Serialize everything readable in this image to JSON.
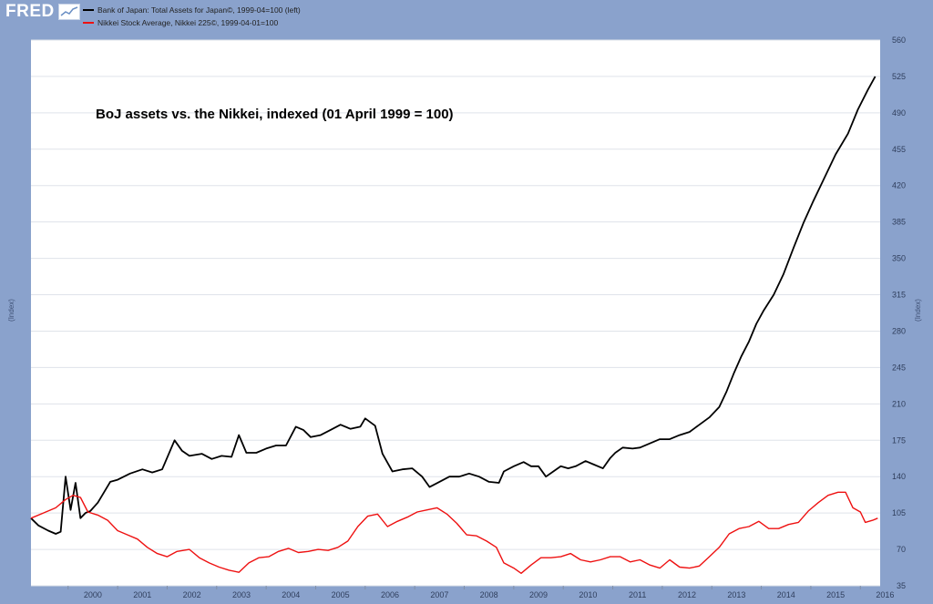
{
  "logo": "FRED",
  "legend": [
    {
      "label": "Bank of Japan: Total Assets for Japan©, 1999-04=100 (left)",
      "color": "#000000"
    },
    {
      "label": "Nikkei Stock Average, Nikkei 225©, 1999-04-01=100",
      "color": "#ee1111"
    }
  ],
  "axes": {
    "left_title": "(Index)",
    "right_title": "(Index)"
  },
  "chart_data": {
    "type": "line",
    "title": "BoJ assets vs. the Nikkei, indexed (01 April 1999 = 100)",
    "x_range": [
      1999.25,
      2016.4
    ],
    "y_range": [
      35,
      560
    ],
    "x_ticks": [
      "2000",
      "2001",
      "2002",
      "2003",
      "2004",
      "2005",
      "2006",
      "2007",
      "2008",
      "2009",
      "2010",
      "2011",
      "2012",
      "2013",
      "2014",
      "2015",
      "2016"
    ],
    "y_ticks": [
      35,
      70,
      105,
      140,
      175,
      210,
      245,
      280,
      315,
      350,
      385,
      420,
      455,
      490,
      525,
      560
    ],
    "grid": true,
    "series": [
      {
        "name": "Bank of Japan: Total Assets for Japan©, 1999-04=100 (left)",
        "color": "#000000",
        "points": [
          [
            1999.25,
            100
          ],
          [
            1999.4,
            93
          ],
          [
            1999.6,
            88
          ],
          [
            1999.75,
            85
          ],
          [
            1999.85,
            87
          ],
          [
            1999.95,
            140
          ],
          [
            2000.05,
            108
          ],
          [
            2000.15,
            134
          ],
          [
            2000.25,
            100
          ],
          [
            2000.35,
            105
          ],
          [
            2000.45,
            107
          ],
          [
            2000.6,
            115
          ],
          [
            2000.85,
            135
          ],
          [
            2001.0,
            137
          ],
          [
            2001.25,
            143
          ],
          [
            2001.5,
            147
          ],
          [
            2001.7,
            144
          ],
          [
            2001.9,
            147
          ],
          [
            2002.15,
            175
          ],
          [
            2002.3,
            165
          ],
          [
            2002.45,
            160
          ],
          [
            2002.7,
            162
          ],
          [
            2002.9,
            157
          ],
          [
            2003.1,
            160
          ],
          [
            2003.3,
            159
          ],
          [
            2003.45,
            180
          ],
          [
            2003.6,
            163
          ],
          [
            2003.8,
            163
          ],
          [
            2004.0,
            167
          ],
          [
            2004.2,
            170
          ],
          [
            2004.4,
            170
          ],
          [
            2004.6,
            188
          ],
          [
            2004.75,
            185
          ],
          [
            2004.9,
            178
          ],
          [
            2005.1,
            180
          ],
          [
            2005.3,
            185
          ],
          [
            2005.5,
            190
          ],
          [
            2005.7,
            186
          ],
          [
            2005.9,
            188
          ],
          [
            2006.0,
            196
          ],
          [
            2006.2,
            189
          ],
          [
            2006.35,
            162
          ],
          [
            2006.55,
            145
          ],
          [
            2006.75,
            147
          ],
          [
            2006.95,
            148
          ],
          [
            2007.15,
            140
          ],
          [
            2007.3,
            130
          ],
          [
            2007.5,
            135
          ],
          [
            2007.7,
            140
          ],
          [
            2007.9,
            140
          ],
          [
            2008.1,
            143
          ],
          [
            2008.3,
            140
          ],
          [
            2008.5,
            135
          ],
          [
            2008.7,
            134
          ],
          [
            2008.8,
            145
          ],
          [
            2009.0,
            150
          ],
          [
            2009.2,
            154
          ],
          [
            2009.35,
            150
          ],
          [
            2009.5,
            150
          ],
          [
            2009.65,
            140
          ],
          [
            2009.8,
            145
          ],
          [
            2009.95,
            150
          ],
          [
            2010.1,
            148
          ],
          [
            2010.25,
            150
          ],
          [
            2010.45,
            155
          ],
          [
            2010.6,
            152
          ],
          [
            2010.8,
            148
          ],
          [
            2010.95,
            158
          ],
          [
            2011.05,
            163
          ],
          [
            2011.2,
            168
          ],
          [
            2011.4,
            167
          ],
          [
            2011.55,
            168
          ],
          [
            2011.75,
            172
          ],
          [
            2011.95,
            176
          ],
          [
            2012.15,
            176
          ],
          [
            2012.35,
            180
          ],
          [
            2012.55,
            183
          ],
          [
            2012.75,
            190
          ],
          [
            2012.95,
            197
          ],
          [
            2013.15,
            207
          ],
          [
            2013.3,
            222
          ],
          [
            2013.45,
            240
          ],
          [
            2013.6,
            256
          ],
          [
            2013.75,
            270
          ],
          [
            2013.9,
            287
          ],
          [
            2014.05,
            300
          ],
          [
            2014.25,
            315
          ],
          [
            2014.45,
            335
          ],
          [
            2014.65,
            360
          ],
          [
            2014.85,
            384
          ],
          [
            2015.05,
            405
          ],
          [
            2015.25,
            425
          ],
          [
            2015.5,
            450
          ],
          [
            2015.75,
            470
          ],
          [
            2015.95,
            493
          ],
          [
            2016.15,
            512
          ],
          [
            2016.3,
            525
          ]
        ]
      },
      {
        "name": "Nikkei Stock Average, Nikkei 225©, 1999-04-01=100",
        "color": "#ee1111",
        "points": [
          [
            1999.25,
            100
          ],
          [
            1999.5,
            105
          ],
          [
            1999.75,
            110
          ],
          [
            1999.95,
            118
          ],
          [
            2000.1,
            122
          ],
          [
            2000.25,
            120
          ],
          [
            2000.4,
            106
          ],
          [
            2000.6,
            103
          ],
          [
            2000.8,
            98
          ],
          [
            2001.0,
            88
          ],
          [
            2001.2,
            84
          ],
          [
            2001.4,
            80
          ],
          [
            2001.6,
            72
          ],
          [
            2001.8,
            66
          ],
          [
            2002.0,
            63
          ],
          [
            2002.2,
            68
          ],
          [
            2002.45,
            70
          ],
          [
            2002.65,
            62
          ],
          [
            2002.85,
            57
          ],
          [
            2003.05,
            53
          ],
          [
            2003.25,
            50
          ],
          [
            2003.45,
            48
          ],
          [
            2003.65,
            57
          ],
          [
            2003.85,
            62
          ],
          [
            2004.05,
            63
          ],
          [
            2004.25,
            68
          ],
          [
            2004.45,
            71
          ],
          [
            2004.65,
            67
          ],
          [
            2004.85,
            68
          ],
          [
            2005.05,
            70
          ],
          [
            2005.25,
            69
          ],
          [
            2005.45,
            72
          ],
          [
            2005.65,
            78
          ],
          [
            2005.85,
            92
          ],
          [
            2006.05,
            102
          ],
          [
            2006.25,
            104
          ],
          [
            2006.45,
            92
          ],
          [
            2006.65,
            97
          ],
          [
            2006.85,
            101
          ],
          [
            2007.05,
            106
          ],
          [
            2007.25,
            108
          ],
          [
            2007.45,
            110
          ],
          [
            2007.65,
            104
          ],
          [
            2007.85,
            95
          ],
          [
            2008.05,
            84
          ],
          [
            2008.25,
            83
          ],
          [
            2008.45,
            78
          ],
          [
            2008.65,
            72
          ],
          [
            2008.8,
            57
          ],
          [
            2009.0,
            52
          ],
          [
            2009.15,
            47
          ],
          [
            2009.35,
            55
          ],
          [
            2009.55,
            62
          ],
          [
            2009.75,
            62
          ],
          [
            2009.95,
            63
          ],
          [
            2010.15,
            66
          ],
          [
            2010.35,
            60
          ],
          [
            2010.55,
            58
          ],
          [
            2010.75,
            60
          ],
          [
            2010.95,
            63
          ],
          [
            2011.15,
            63
          ],
          [
            2011.35,
            58
          ],
          [
            2011.55,
            60
          ],
          [
            2011.75,
            55
          ],
          [
            2011.95,
            52
          ],
          [
            2012.15,
            60
          ],
          [
            2012.35,
            53
          ],
          [
            2012.55,
            52
          ],
          [
            2012.75,
            54
          ],
          [
            2012.95,
            63
          ],
          [
            2013.15,
            72
          ],
          [
            2013.35,
            85
          ],
          [
            2013.55,
            90
          ],
          [
            2013.75,
            92
          ],
          [
            2013.95,
            97
          ],
          [
            2014.15,
            90
          ],
          [
            2014.35,
            90
          ],
          [
            2014.55,
            94
          ],
          [
            2014.75,
            96
          ],
          [
            2014.95,
            107
          ],
          [
            2015.15,
            115
          ],
          [
            2015.35,
            122
          ],
          [
            2015.55,
            125
          ],
          [
            2015.7,
            125
          ],
          [
            2015.85,
            110
          ],
          [
            2016.0,
            106
          ],
          [
            2016.1,
            96
          ],
          [
            2016.25,
            98
          ],
          [
            2016.35,
            100
          ]
        ]
      }
    ]
  }
}
